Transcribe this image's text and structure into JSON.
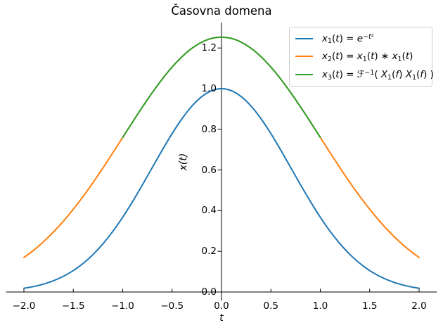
{
  "chart_data": {
    "type": "line",
    "title": "Časovna domena",
    "xlabel": "t",
    "ylabel": "x(t)",
    "xlim": [
      -2.18,
      2.18
    ],
    "ylim": [
      -0.043,
      1.325
    ],
    "grid": false,
    "legend_position": "upper right",
    "x_ticks": {
      "values": [
        -2.0,
        -1.5,
        -1.0,
        -0.5,
        0.0,
        0.5,
        1.0,
        1.5,
        2.0
      ],
      "labels": [
        "−2.0",
        "−1.5",
        "−1.0",
        "−0.5",
        "0.0",
        "0.5",
        "1.0",
        "1.5",
        "2.0"
      ]
    },
    "y_ticks": {
      "values": [
        0.0,
        0.2,
        0.4,
        0.6,
        0.8,
        1.0,
        1.2
      ],
      "labels": [
        "0.0",
        "0.2",
        "0.4",
        "0.6",
        "0.8",
        "1.0",
        "1.2"
      ]
    },
    "series": [
      {
        "name": "x1",
        "label_text": "x1(t) = e^(−t²)",
        "color": "#1f77b4",
        "label_parts": [
          [
            "i",
            "x"
          ],
          [
            "sub",
            "1"
          ],
          [
            "",
            "("
          ],
          [
            "i",
            "t"
          ],
          [
            "",
            ") = "
          ],
          [
            "i",
            "e"
          ],
          [
            "sup",
            "−"
          ],
          [
            "supi",
            "t"
          ],
          [
            "sup",
            "²"
          ]
        ],
        "x": [
          -2.0,
          -1.9,
          -1.8,
          -1.7,
          -1.6,
          -1.5,
          -1.4,
          -1.3,
          -1.2,
          -1.1,
          -1.0,
          -0.9,
          -0.8,
          -0.7,
          -0.6,
          -0.5,
          -0.4,
          -0.3,
          -0.2,
          -0.1,
          0.0,
          0.1,
          0.2,
          0.3,
          0.4,
          0.5,
          0.6,
          0.7,
          0.8,
          0.9,
          1.0,
          1.1,
          1.2,
          1.3,
          1.4,
          1.5,
          1.6,
          1.7,
          1.8,
          1.9,
          2.0
        ],
        "y": [
          0.0183,
          0.0271,
          0.0392,
          0.0556,
          0.0773,
          0.1054,
          0.1409,
          0.1845,
          0.2369,
          0.2982,
          0.3679,
          0.4449,
          0.5273,
          0.6126,
          0.6977,
          0.7788,
          0.8521,
          0.9139,
          0.9608,
          0.99,
          1.0,
          0.99,
          0.9608,
          0.9139,
          0.8521,
          0.7788,
          0.6977,
          0.6126,
          0.5273,
          0.4449,
          0.3679,
          0.2982,
          0.2369,
          0.1845,
          0.1409,
          0.1054,
          0.0773,
          0.0556,
          0.0392,
          0.0271,
          0.0183
        ]
      },
      {
        "name": "x2",
        "label_text": "x2(t) = x1(t) ∗ x1(t)",
        "color": "#ff7f0e",
        "label_parts": [
          [
            "i",
            "x"
          ],
          [
            "sub",
            "2"
          ],
          [
            "",
            "("
          ],
          [
            "i",
            "t"
          ],
          [
            "",
            ") = "
          ],
          [
            "i",
            "x"
          ],
          [
            "sub",
            "1"
          ],
          [
            "",
            "("
          ],
          [
            "i",
            "t"
          ],
          [
            "",
            ") ∗ "
          ],
          [
            "i",
            "x"
          ],
          [
            "sub",
            "1"
          ],
          [
            "",
            "("
          ],
          [
            "i",
            "t"
          ],
          [
            "",
            ")"
          ]
        ],
        "x": [
          -2.0,
          -1.9,
          -1.8,
          -1.7,
          -1.6,
          -1.5,
          -1.4,
          -1.3,
          -1.2,
          -1.1,
          -1.0,
          -0.9,
          -0.8,
          -0.7,
          -0.6,
          -0.5,
          -0.4,
          -0.3,
          -0.2,
          -0.1,
          0.0,
          0.1,
          0.2,
          0.3,
          0.4,
          0.5,
          0.6,
          0.7,
          0.8,
          0.9,
          1.0,
          1.1,
          1.2,
          1.3,
          1.4,
          1.5,
          1.6,
          1.7,
          1.8,
          1.9,
          2.0
        ],
        "y": [
          0.1696,
          0.2062,
          0.248,
          0.2954,
          0.3484,
          0.4069,
          0.4704,
          0.5384,
          0.6101,
          0.6845,
          0.7602,
          0.836,
          0.9101,
          0.981,
          1.0469,
          1.1061,
          1.157,
          1.1982,
          1.2285,
          1.2471,
          1.2533,
          1.2471,
          1.2285,
          1.1982,
          1.157,
          1.1061,
          1.0469,
          0.981,
          0.9101,
          0.836,
          0.7602,
          0.6845,
          0.6101,
          0.5384,
          0.4704,
          0.4069,
          0.3484,
          0.2954,
          0.248,
          0.2062,
          0.1696
        ]
      },
      {
        "name": "x3",
        "label_text": "x3(t) = F⁻¹( X1(f) X1(f) )",
        "color": "#2ca02c",
        "label_parts": [
          [
            "i",
            "x"
          ],
          [
            "sub",
            "3"
          ],
          [
            "",
            "("
          ],
          [
            "i",
            "t"
          ],
          [
            "",
            ") = "
          ],
          [
            "",
            "ℱ"
          ],
          [
            "sup",
            "−1"
          ],
          [
            "",
            "( "
          ],
          [
            "i",
            "X"
          ],
          [
            "sub",
            "1"
          ],
          [
            "",
            "("
          ],
          [
            "i",
            "f"
          ],
          [
            "",
            ") "
          ],
          [
            "i",
            "X"
          ],
          [
            "sub",
            "1"
          ],
          [
            "",
            "("
          ],
          [
            "i",
            "f"
          ],
          [
            "",
            ") )"
          ]
        ],
        "x": [
          -1.0,
          -0.9,
          -0.8,
          -0.7,
          -0.6,
          -0.5,
          -0.4,
          -0.3,
          -0.2,
          -0.1,
          0.0,
          0.1,
          0.2,
          0.3,
          0.4,
          0.5,
          0.6,
          0.7,
          0.8,
          0.9,
          1.0
        ],
        "y": [
          0.7602,
          0.836,
          0.9101,
          0.981,
          1.0469,
          1.1061,
          1.157,
          1.1982,
          1.2285,
          1.2471,
          1.2533,
          1.2471,
          1.2285,
          1.1982,
          1.157,
          1.1061,
          1.0469,
          0.981,
          0.9101,
          0.836,
          0.7602
        ]
      }
    ]
  }
}
